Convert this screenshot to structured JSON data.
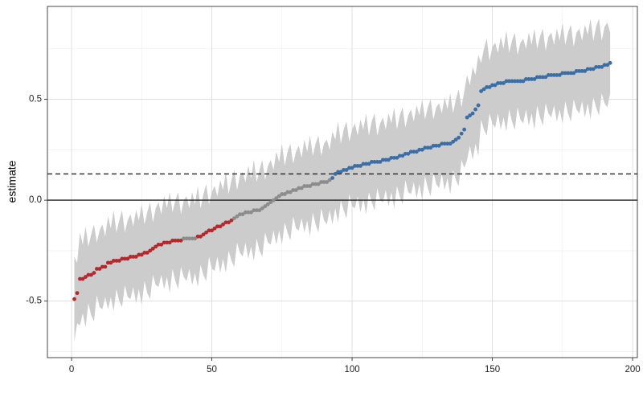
{
  "chart_data": {
    "type": "caterpillar",
    "y_label": "estimate",
    "xlim": [
      -8.6,
      201.7
    ],
    "ylim": [
      -0.78,
      0.96
    ],
    "xticks": [
      0,
      50,
      100,
      150,
      200
    ],
    "yticks": [
      -0.5,
      {
        "value": 0,
        "label": "0.0"
      },
      0.5
    ],
    "x_minor": [
      25,
      75,
      125,
      175
    ],
    "y_minor": [
      -0.75,
      -0.25,
      0.25,
      0.75
    ],
    "grid": true,
    "hlines": [
      {
        "value": 0,
        "style": "solid"
      },
      {
        "value": 0.13,
        "style": "dashed"
      }
    ],
    "ribbon": {
      "color": "#cccccc",
      "x": [
        1,
        2,
        3,
        4,
        5,
        6,
        7,
        8,
        9,
        10,
        11,
        12,
        13,
        14,
        15,
        16,
        17,
        18,
        19,
        20,
        21,
        22,
        23,
        24,
        25,
        26,
        27,
        28,
        29,
        30,
        31,
        32,
        33,
        34,
        35,
        36,
        37,
        38,
        39,
        40,
        41,
        42,
        43,
        44,
        45,
        46,
        47,
        48,
        49,
        50,
        51,
        52,
        53,
        54,
        55,
        56,
        57,
        58,
        59,
        60,
        61,
        62,
        63,
        64,
        65,
        66,
        67,
        68,
        69,
        70,
        71,
        72,
        73,
        74,
        75,
        76,
        77,
        78,
        79,
        80,
        81,
        82,
        83,
        84,
        85,
        86,
        87,
        88,
        89,
        90,
        91,
        92,
        93,
        94,
        95,
        96,
        97,
        98,
        99,
        100,
        101,
        102,
        103,
        104,
        105,
        106,
        107,
        108,
        109,
        110,
        111,
        112,
        113,
        114,
        115,
        116,
        117,
        118,
        119,
        120,
        121,
        122,
        123,
        124,
        125,
        126,
        127,
        128,
        129,
        130,
        131,
        132,
        133,
        134,
        135,
        136,
        137,
        138,
        139,
        140,
        141,
        142,
        143,
        144,
        145,
        146,
        147,
        148,
        149,
        150,
        151,
        152,
        153,
        154,
        155,
        156,
        157,
        158,
        159,
        160,
        161,
        162,
        163,
        164,
        165,
        166,
        167,
        168,
        169,
        170,
        171,
        172,
        173,
        174,
        175,
        176,
        177,
        178,
        179,
        180,
        181,
        182,
        183,
        184,
        185,
        186,
        187,
        188,
        189,
        190,
        191,
        192
      ],
      "lower": [
        -0.7,
        -0.61,
        -0.62,
        -0.56,
        -0.63,
        -0.51,
        -0.57,
        -0.6,
        -0.47,
        -0.53,
        -0.54,
        -0.48,
        -0.54,
        -0.48,
        -0.55,
        -0.44,
        -0.5,
        -0.53,
        -0.42,
        -0.48,
        -0.49,
        -0.43,
        -0.51,
        -0.44,
        -0.52,
        -0.4,
        -0.46,
        -0.49,
        -0.37,
        -0.42,
        -0.43,
        -0.37,
        -0.44,
        -0.38,
        -0.46,
        -0.34,
        -0.4,
        -0.44,
        -0.33,
        -0.38,
        -0.4,
        -0.34,
        -0.42,
        -0.36,
        -0.43,
        -0.32,
        -0.37,
        -0.4,
        -0.28,
        -0.34,
        -0.35,
        -0.28,
        -0.36,
        -0.29,
        -0.36,
        -0.25,
        -0.3,
        -0.33,
        -0.21,
        -0.26,
        -0.28,
        -0.21,
        -0.29,
        -0.23,
        -0.3,
        -0.19,
        -0.25,
        -0.28,
        -0.16,
        -0.21,
        -0.22,
        -0.15,
        -0.22,
        -0.15,
        -0.22,
        -0.11,
        -0.16,
        -0.2,
        -0.08,
        -0.14,
        -0.15,
        -0.09,
        -0.16,
        -0.1,
        -0.18,
        -0.06,
        -0.12,
        -0.16,
        -0.04,
        -0.1,
        -0.12,
        -0.05,
        -0.12,
        -0.04,
        -0.11,
        0.0,
        -0.05,
        -0.09,
        0.03,
        -0.03,
        -0.04,
        0.02,
        -0.06,
        0.01,
        -0.07,
        0.04,
        -0.01,
        -0.05,
        0.06,
        0.0,
        -0.01,
        0.05,
        -0.03,
        0.04,
        -0.04,
        0.07,
        0.02,
        -0.02,
        0.1,
        0.04,
        0.03,
        0.09,
        0.01,
        0.08,
        0.0,
        0.12,
        0.06,
        0.02,
        0.14,
        0.08,
        0.06,
        0.13,
        0.05,
        0.11,
        0.03,
        0.15,
        0.1,
        0.07,
        0.2,
        0.16,
        0.2,
        0.27,
        0.2,
        0.28,
        0.22,
        0.4,
        0.35,
        0.32,
        0.43,
        0.38,
        0.36,
        0.43,
        0.35,
        0.41,
        0.34,
        0.45,
        0.39,
        0.35,
        0.46,
        0.4,
        0.38,
        0.45,
        0.37,
        0.43,
        0.35,
        0.47,
        0.41,
        0.37,
        0.48,
        0.43,
        0.41,
        0.47,
        0.39,
        0.45,
        0.38,
        0.49,
        0.43,
        0.39,
        0.5,
        0.45,
        0.43,
        0.49,
        0.41,
        0.48,
        0.4,
        0.51,
        0.46,
        0.42,
        0.53,
        0.48,
        0.46,
        0.53
      ],
      "upper": [
        -0.28,
        -0.31,
        -0.16,
        -0.22,
        -0.13,
        -0.23,
        -0.17,
        -0.12,
        -0.21,
        -0.15,
        -0.12,
        -0.18,
        -0.08,
        -0.14,
        -0.05,
        -0.16,
        -0.1,
        -0.05,
        -0.16,
        -0.1,
        -0.07,
        -0.13,
        -0.05,
        -0.1,
        -0.02,
        -0.12,
        -0.06,
        -0.01,
        -0.11,
        -0.04,
        -0.01,
        -0.07,
        0.02,
        -0.04,
        0.04,
        -0.06,
        0.0,
        0.04,
        -0.07,
        0.0,
        0.02,
        -0.04,
        0.04,
        -0.02,
        0.07,
        -0.04,
        0.03,
        0.08,
        -0.02,
        0.04,
        0.07,
        0.02,
        0.1,
        0.05,
        0.14,
        0.03,
        0.1,
        0.15,
        0.05,
        0.12,
        0.14,
        0.09,
        0.17,
        0.11,
        0.2,
        0.09,
        0.15,
        0.2,
        0.1,
        0.17,
        0.2,
        0.15,
        0.24,
        0.19,
        0.28,
        0.17,
        0.24,
        0.28,
        0.18,
        0.24,
        0.27,
        0.21,
        0.3,
        0.24,
        0.32,
        0.22,
        0.28,
        0.32,
        0.22,
        0.28,
        0.3,
        0.25,
        0.34,
        0.3,
        0.39,
        0.28,
        0.35,
        0.39,
        0.29,
        0.35,
        0.38,
        0.32,
        0.4,
        0.35,
        0.43,
        0.32,
        0.39,
        0.43,
        0.32,
        0.38,
        0.41,
        0.35,
        0.43,
        0.38,
        0.46,
        0.35,
        0.42,
        0.46,
        0.36,
        0.42,
        0.45,
        0.39,
        0.47,
        0.42,
        0.5,
        0.4,
        0.46,
        0.5,
        0.4,
        0.46,
        0.48,
        0.43,
        0.51,
        0.45,
        0.53,
        0.43,
        0.5,
        0.55,
        0.46,
        0.54,
        0.62,
        0.57,
        0.66,
        0.62,
        0.72,
        0.68,
        0.75,
        0.8,
        0.69,
        0.76,
        0.78,
        0.73,
        0.81,
        0.75,
        0.84,
        0.73,
        0.79,
        0.83,
        0.72,
        0.78,
        0.8,
        0.75,
        0.83,
        0.77,
        0.85,
        0.75,
        0.81,
        0.85,
        0.74,
        0.81,
        0.83,
        0.77,
        0.85,
        0.79,
        0.88,
        0.77,
        0.83,
        0.87,
        0.76,
        0.83,
        0.85,
        0.79,
        0.87,
        0.82,
        0.9,
        0.79,
        0.86,
        0.9,
        0.79,
        0.86,
        0.88,
        0.83
      ]
    },
    "series": [
      {
        "color": "#b2292e",
        "x": [
          1,
          2,
          3,
          4,
          5,
          6,
          7,
          8,
          9,
          10,
          11,
          12,
          13,
          14,
          15,
          16,
          17,
          18,
          19,
          20,
          21,
          22,
          23,
          24,
          25,
          26,
          27,
          28,
          29,
          30,
          31,
          32,
          33,
          34,
          35,
          36,
          37,
          38,
          39,
          45,
          46,
          47,
          48,
          49,
          50,
          51,
          52,
          53,
          54,
          55,
          56,
          57
        ],
        "values": [
          -0.49,
          -0.46,
          -0.39,
          -0.39,
          -0.38,
          -0.37,
          -0.37,
          -0.36,
          -0.34,
          -0.34,
          -0.33,
          -0.33,
          -0.31,
          -0.31,
          -0.3,
          -0.3,
          -0.3,
          -0.29,
          -0.29,
          -0.29,
          -0.28,
          -0.28,
          -0.28,
          -0.27,
          -0.27,
          -0.26,
          -0.26,
          -0.25,
          -0.24,
          -0.23,
          -0.22,
          -0.22,
          -0.21,
          -0.21,
          -0.21,
          -0.2,
          -0.2,
          -0.2,
          -0.2,
          -0.18,
          -0.18,
          -0.17,
          -0.16,
          -0.15,
          -0.15,
          -0.14,
          -0.13,
          -0.13,
          -0.12,
          -0.11,
          -0.11,
          -0.1
        ]
      },
      {
        "color": "#8c8c8c",
        "x": [
          40,
          41,
          42,
          43,
          44,
          58,
          59,
          60,
          61,
          62,
          63,
          64,
          65,
          66,
          67,
          68,
          69,
          70,
          71,
          72,
          73,
          74,
          75,
          76,
          77,
          78,
          79,
          80,
          81,
          82,
          83,
          84,
          85,
          86,
          87,
          88,
          89,
          90,
          91,
          92
        ],
        "values": [
          -0.19,
          -0.19,
          -0.19,
          -0.19,
          -0.19,
          -0.09,
          -0.08,
          -0.07,
          -0.07,
          -0.06,
          -0.06,
          -0.06,
          -0.05,
          -0.05,
          -0.05,
          -0.04,
          -0.03,
          -0.02,
          -0.01,
          0.0,
          0.01,
          0.02,
          0.03,
          0.03,
          0.04,
          0.04,
          0.05,
          0.05,
          0.06,
          0.06,
          0.07,
          0.07,
          0.07,
          0.08,
          0.08,
          0.08,
          0.09,
          0.09,
          0.09,
          0.1
        ]
      },
      {
        "color": "#3a6ea5",
        "x": [
          93,
          94,
          95,
          96,
          97,
          98,
          99,
          100,
          101,
          102,
          103,
          104,
          105,
          106,
          107,
          108,
          109,
          110,
          111,
          112,
          113,
          114,
          115,
          116,
          117,
          118,
          119,
          120,
          121,
          122,
          123,
          124,
          125,
          126,
          127,
          128,
          129,
          130,
          131,
          132,
          133,
          134,
          135,
          136,
          137,
          138,
          139,
          140,
          141,
          142,
          143,
          144,
          145,
          146,
          147,
          148,
          149,
          150,
          151,
          152,
          153,
          154,
          155,
          156,
          157,
          158,
          159,
          160,
          161,
          162,
          163,
          164,
          165,
          166,
          167,
          168,
          169,
          170,
          171,
          172,
          173,
          174,
          175,
          176,
          177,
          178,
          179,
          180,
          181,
          182,
          183,
          184,
          185,
          186,
          187,
          188,
          189,
          190,
          191,
          192
        ],
        "values": [
          0.11,
          0.13,
          0.14,
          0.14,
          0.15,
          0.15,
          0.16,
          0.16,
          0.17,
          0.17,
          0.17,
          0.18,
          0.18,
          0.18,
          0.19,
          0.19,
          0.19,
          0.19,
          0.2,
          0.2,
          0.2,
          0.21,
          0.21,
          0.21,
          0.22,
          0.22,
          0.23,
          0.23,
          0.24,
          0.24,
          0.24,
          0.25,
          0.25,
          0.26,
          0.26,
          0.26,
          0.27,
          0.27,
          0.27,
          0.28,
          0.28,
          0.28,
          0.28,
          0.29,
          0.3,
          0.31,
          0.33,
          0.35,
          0.41,
          0.42,
          0.43,
          0.45,
          0.47,
          0.54,
          0.55,
          0.56,
          0.56,
          0.57,
          0.57,
          0.58,
          0.58,
          0.58,
          0.59,
          0.59,
          0.59,
          0.59,
          0.59,
          0.59,
          0.59,
          0.6,
          0.6,
          0.6,
          0.6,
          0.61,
          0.61,
          0.61,
          0.61,
          0.62,
          0.62,
          0.62,
          0.62,
          0.62,
          0.63,
          0.63,
          0.63,
          0.63,
          0.63,
          0.64,
          0.64,
          0.64,
          0.64,
          0.65,
          0.65,
          0.65,
          0.66,
          0.66,
          0.66,
          0.67,
          0.67,
          0.68
        ]
      }
    ]
  }
}
